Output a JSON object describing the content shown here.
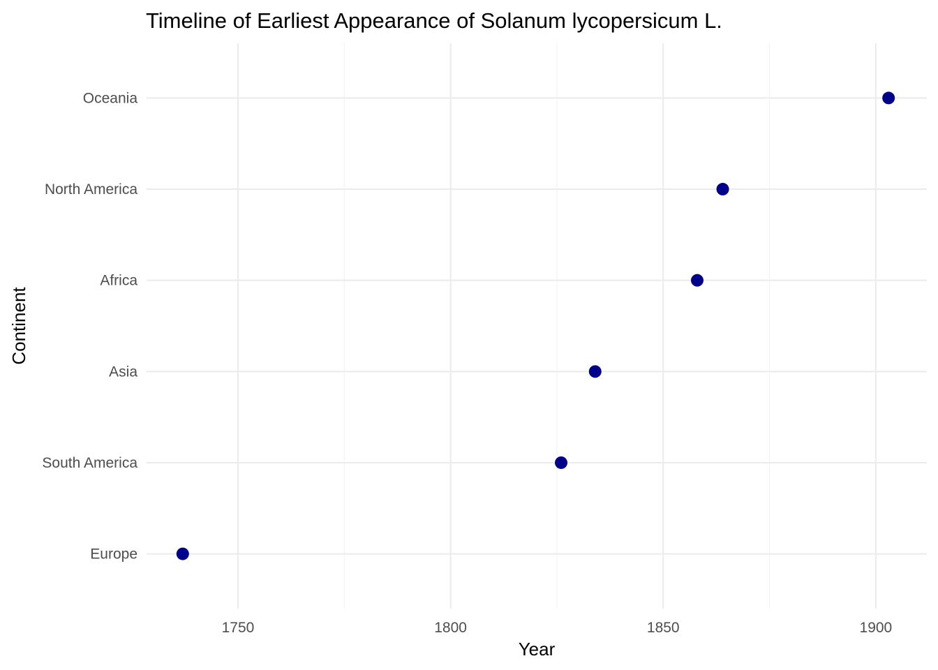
{
  "chart_data": {
    "type": "scatter",
    "title": "Timeline of Earliest Appearance of Solanum lycopersicum L.",
    "xlabel": "Year",
    "ylabel": "Continent",
    "categories": [
      "Europe",
      "South America",
      "Asia",
      "Africa",
      "North America",
      "Oceania"
    ],
    "points": [
      {
        "category": "Europe",
        "x": 1737
      },
      {
        "category": "South America",
        "x": 1826
      },
      {
        "category": "Asia",
        "x": 1834
      },
      {
        "category": "Africa",
        "x": 1858
      },
      {
        "category": "North America",
        "x": 1864
      },
      {
        "category": "Oceania",
        "x": 1903
      }
    ],
    "xticks": [
      1750,
      1800,
      1850,
      1900
    ],
    "xlim": [
      1728.5,
      1912
    ],
    "grid": true,
    "legend": "none",
    "colors": {
      "point": "#00008B"
    }
  }
}
